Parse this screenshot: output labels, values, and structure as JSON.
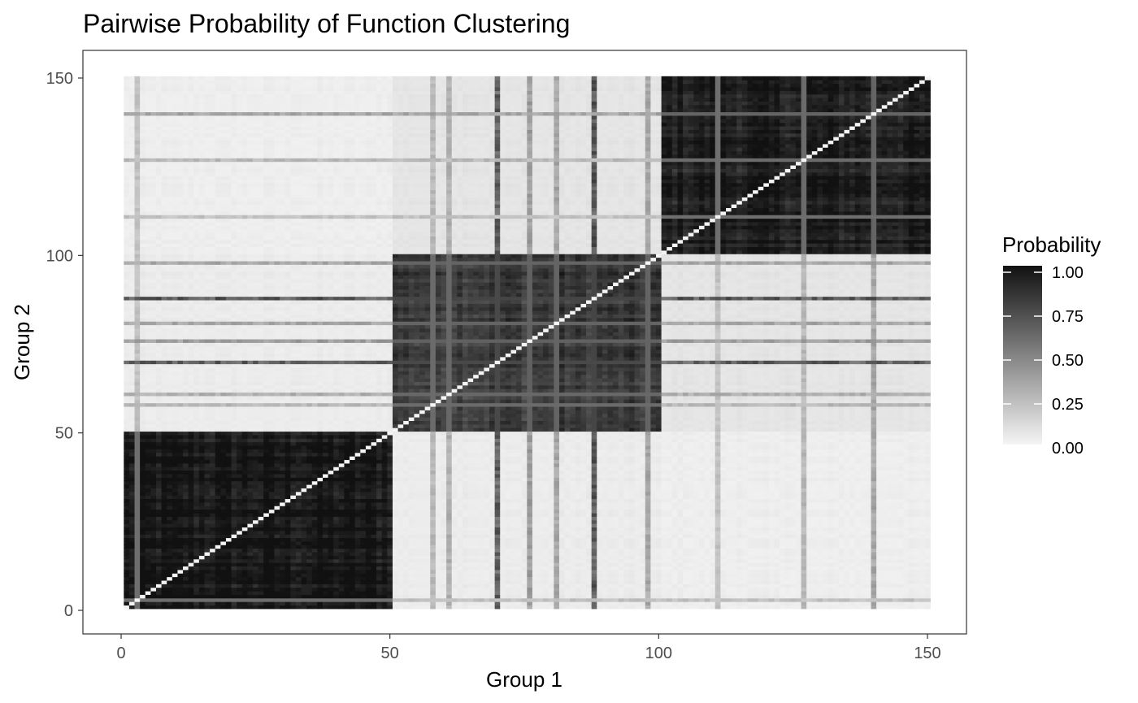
{
  "chart_data": {
    "type": "heatmap",
    "title": "Pairwise Probability of Function Clustering",
    "xlabel": "Group 1",
    "ylabel": "Group 2",
    "xlim": [
      0,
      150
    ],
    "ylim": [
      0,
      150
    ],
    "x_ticks": [
      "0",
      "50",
      "100",
      "150"
    ],
    "y_ticks": [
      "0",
      "50",
      "100",
      "150"
    ],
    "x_tick_values": [
      0,
      50,
      100,
      150
    ],
    "y_tick_values": [
      0,
      50,
      100,
      150
    ],
    "n_items": 150,
    "blocks": [
      {
        "start": 1,
        "end": 50
      },
      {
        "start": 51,
        "end": 100
      },
      {
        "start": 101,
        "end": 150
      }
    ],
    "block_probability": [
      [
        0.96,
        0.03,
        0.02
      ],
      [
        0.03,
        0.82,
        0.06
      ],
      [
        0.02,
        0.06,
        0.94
      ]
    ],
    "diagonal_value": 0.0,
    "outlier_items": [
      {
        "index": 3,
        "value": 0.3
      },
      {
        "index": 58,
        "value": 0.35
      },
      {
        "index": 61,
        "value": 0.4
      },
      {
        "index": 70,
        "value": 0.85
      },
      {
        "index": 76,
        "value": 0.5
      },
      {
        "index": 81,
        "value": 0.45
      },
      {
        "index": 88,
        "value": 0.9
      },
      {
        "index": 98,
        "value": 0.45
      },
      {
        "index": 111,
        "value": 0.3
      },
      {
        "index": 127,
        "value": 0.35
      },
      {
        "index": 140,
        "value": 0.45
      }
    ],
    "legend": {
      "title": "Probability",
      "labels": [
        "1.00",
        "0.75",
        "0.50",
        "0.25",
        "0.00"
      ],
      "values": [
        1.0,
        0.75,
        0.5,
        0.25,
        0.0
      ],
      "low_color": "#f5f5f5",
      "high_color": "#111111",
      "position": "right"
    },
    "panel_border": "#000000",
    "background": "#ffffff",
    "grid": false
  }
}
